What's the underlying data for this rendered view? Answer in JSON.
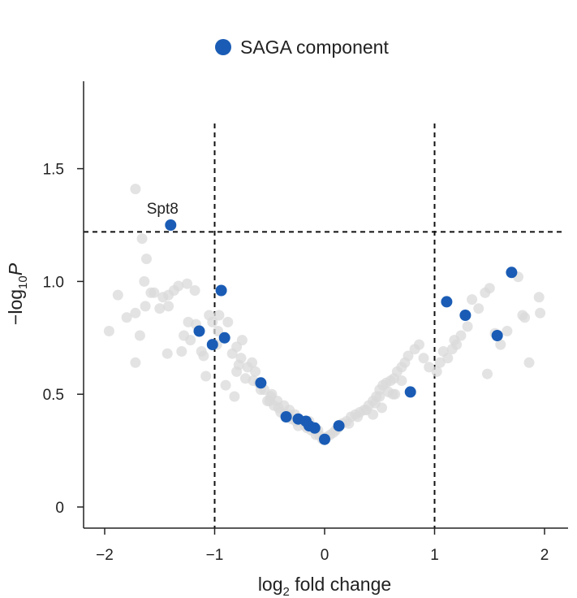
{
  "chart_data": {
    "type": "scatter",
    "xlabel": {
      "base": "log",
      "sub": "2",
      "rest": " fold change"
    },
    "ylabel": {
      "base": "−log",
      "sub": "10",
      "rest": "P"
    },
    "xlim": [
      -2.2,
      2.2
    ],
    "ylim": [
      -0.1,
      1.9
    ],
    "xticks": [
      -2,
      -1,
      0,
      1,
      2
    ],
    "xtick_labels": [
      "−2",
      "−1",
      "0",
      "1",
      "2"
    ],
    "yticks": [
      0,
      0.5,
      1.0,
      1.5
    ],
    "ytick_labels": [
      "0",
      "0.5",
      "1.0",
      "1.5"
    ],
    "thresholds": {
      "x": [
        -1,
        1
      ],
      "y": 1.22
    },
    "legend": {
      "label": "SAGA component",
      "position": "top-center"
    },
    "colors": {
      "saga": "#1a5cb5",
      "other": "#d9d9d9"
    },
    "annotations": [
      {
        "text": "Spt8",
        "x": -1.4,
        "y": 1.25
      }
    ],
    "series": [
      {
        "name": "SAGA component",
        "x": [
          -1.4,
          -0.94,
          -1.14,
          -1.02,
          -0.91,
          -0.58,
          -0.35,
          -0.24,
          -0.17,
          -0.14,
          -0.09,
          0.0,
          0.13,
          0.78,
          1.11,
          1.28,
          1.57,
          1.7
        ],
        "y": [
          1.25,
          0.96,
          0.78,
          0.72,
          0.75,
          0.55,
          0.4,
          0.39,
          0.38,
          0.36,
          0.35,
          0.3,
          0.36,
          0.51,
          0.91,
          0.85,
          0.76,
          1.04
        ]
      },
      {
        "name": "",
        "x": [
          -1.72,
          -1.66,
          -1.62,
          -1.64,
          -1.55,
          -1.47,
          -1.42,
          -1.33,
          -1.25,
          -1.18,
          -1.96,
          -1.88,
          -1.8,
          -1.72,
          -1.68,
          -1.63,
          -1.58,
          -1.5,
          -1.43,
          -1.37,
          -1.3,
          -1.22,
          -1.17,
          -1.1,
          -1.05,
          -0.98,
          -0.88,
          -0.84,
          -0.8,
          -0.75,
          -0.7,
          -1.72,
          -1.42,
          -1.28,
          -1.12,
          -1.24,
          -1.08,
          -0.97,
          -0.9,
          -0.82,
          -0.78,
          -0.72,
          -0.66,
          -0.63,
          -0.6,
          -0.55,
          -0.52,
          -0.49,
          -0.46,
          -0.43,
          -0.4,
          -0.37,
          -0.33,
          -0.3,
          -0.27,
          -0.24,
          -0.2,
          -0.16,
          -0.12,
          -0.08,
          -0.05,
          -0.02,
          0.02,
          0.05,
          0.08,
          0.12,
          0.16,
          0.2,
          0.24,
          0.28,
          0.32,
          0.36,
          0.4,
          0.44,
          0.47,
          0.5,
          0.53,
          0.56,
          0.6,
          0.63,
          0.66,
          0.7,
          0.73,
          0.76,
          0.82,
          0.86,
          0.9,
          0.95,
          1.02,
          1.08,
          1.12,
          1.16,
          1.2,
          1.24,
          1.3,
          1.34,
          1.4,
          1.46,
          1.5,
          1.55,
          1.6,
          1.66,
          1.76,
          1.8,
          1.86,
          1.95,
          1.96,
          -0.58,
          -0.5,
          -0.42,
          -0.36,
          -0.26,
          -0.18,
          -0.06,
          0.1,
          0.22,
          0.3,
          0.38,
          0.46,
          0.5,
          0.58,
          0.64,
          0.7,
          0.44,
          0.52,
          0.62,
          1.05,
          1.18,
          1.48,
          1.82,
          -1.02,
          -0.96,
          -0.76,
          -0.8,
          -0.65,
          -0.48,
          -0.32,
          -0.14
        ],
        "y": [
          1.41,
          1.19,
          1.1,
          1.0,
          0.95,
          0.93,
          0.89,
          0.98,
          0.99,
          0.96,
          0.78,
          0.94,
          0.84,
          0.86,
          0.76,
          0.89,
          0.95,
          0.88,
          0.68,
          0.96,
          0.69,
          0.74,
          0.81,
          0.67,
          0.85,
          0.72,
          0.82,
          0.68,
          0.6,
          0.74,
          0.62,
          0.64,
          0.94,
          0.76,
          0.69,
          0.82,
          0.58,
          0.78,
          0.54,
          0.49,
          0.63,
          0.57,
          0.64,
          0.6,
          0.55,
          0.52,
          0.47,
          0.49,
          0.45,
          0.47,
          0.42,
          0.45,
          0.41,
          0.39,
          0.41,
          0.36,
          0.38,
          0.35,
          0.34,
          0.32,
          0.32,
          0.3,
          0.31,
          0.32,
          0.33,
          0.35,
          0.37,
          0.38,
          0.4,
          0.41,
          0.42,
          0.43,
          0.45,
          0.47,
          0.49,
          0.52,
          0.54,
          0.55,
          0.56,
          0.57,
          0.6,
          0.62,
          0.64,
          0.67,
          0.7,
          0.72,
          0.66,
          0.62,
          0.6,
          0.69,
          0.66,
          0.7,
          0.72,
          0.76,
          0.8,
          0.92,
          0.88,
          0.95,
          0.97,
          0.77,
          0.72,
          0.78,
          1.02,
          0.85,
          0.64,
          0.93,
          0.86,
          0.52,
          0.47,
          0.44,
          0.41,
          0.38,
          0.36,
          0.34,
          0.34,
          0.37,
          0.4,
          0.43,
          0.46,
          0.49,
          0.51,
          0.5,
          0.56,
          0.41,
          0.44,
          0.5,
          0.64,
          0.74,
          0.59,
          0.84,
          0.82,
          0.85,
          0.66,
          0.71,
          0.56,
          0.5,
          0.43,
          0.38
        ]
      }
    ]
  }
}
